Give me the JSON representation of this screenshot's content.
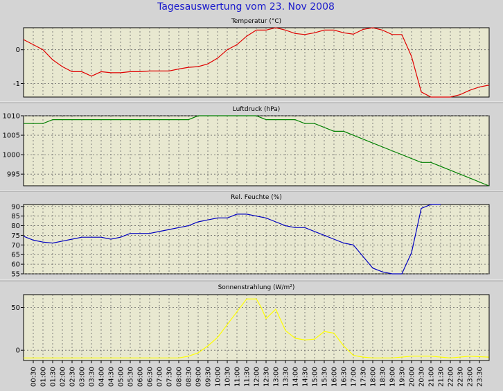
{
  "title": "Tagesauswertung vom 23. Nov 2008",
  "colors": {
    "background": "#d4d4d4",
    "plot_bg": "#e8e8d0",
    "grid": "#666666",
    "title": "#1a1acc"
  },
  "x_ticks": [
    "00:30",
    "01:00",
    "01:30",
    "02:00",
    "02:30",
    "03:00",
    "03:30",
    "04:00",
    "04:30",
    "05:00",
    "05:30",
    "06:00",
    "06:30",
    "07:00",
    "07:30",
    "08:00",
    "08:30",
    "09:00",
    "09:30",
    "10:00",
    "10:30",
    "11:00",
    "11:30",
    "12:00",
    "12:30",
    "13:00",
    "13:30",
    "14:00",
    "14:30",
    "15:00",
    "15:30",
    "16:00",
    "16:30",
    "17:00",
    "17:30",
    "18:00",
    "18:30",
    "19:00",
    "19:30",
    "20:00",
    "20:30",
    "21:00",
    "21:30",
    "22:00",
    "22:30",
    "23:00",
    "23:30"
  ],
  "chart_data": [
    {
      "type": "line",
      "title": "Temperatur (°C)",
      "color": "#e00000",
      "ylim": [
        -1.4,
        0.65
      ],
      "yticks": [
        0,
        -1
      ],
      "grid": true,
      "x": [
        "00:00",
        "00:30",
        "01:00",
        "01:30",
        "02:00",
        "02:30",
        "03:00",
        "03:30",
        "04:00",
        "04:30",
        "05:00",
        "05:30",
        "06:00",
        "06:30",
        "07:00",
        "07:30",
        "08:00",
        "08:30",
        "09:00",
        "09:30",
        "10:00",
        "10:30",
        "11:00",
        "11:30",
        "12:00",
        "12:30",
        "13:00",
        "13:30",
        "14:00",
        "14:30",
        "15:00",
        "15:30",
        "16:00",
        "16:30",
        "17:00",
        "17:30",
        "18:00",
        "18:30",
        "19:00",
        "19:30",
        "20:00",
        "20:30",
        "21:00",
        "21:30",
        "22:00",
        "22:30",
        "23:00",
        "23:30",
        "23:59"
      ],
      "values": [
        0.3,
        0.15,
        0.0,
        -0.3,
        -0.5,
        -0.65,
        -0.65,
        -0.78,
        -0.65,
        -0.68,
        -0.68,
        -0.65,
        -0.65,
        -0.63,
        -0.63,
        -0.63,
        -0.57,
        -0.52,
        -0.5,
        -0.42,
        -0.25,
        0.0,
        0.15,
        0.4,
        0.58,
        0.58,
        0.65,
        0.58,
        0.48,
        0.45,
        0.5,
        0.58,
        0.58,
        0.5,
        0.46,
        0.6,
        0.65,
        0.58,
        0.45,
        0.45,
        -0.2,
        -1.25,
        -1.4,
        -1.4,
        -1.4,
        -1.33,
        -1.2,
        -1.1,
        -1.05
      ]
    },
    {
      "type": "line",
      "title": "Luftdruck (hPa)",
      "color": "#008000",
      "ylim": [
        992,
        1010
      ],
      "yticks": [
        1010,
        1005,
        1000,
        995
      ],
      "grid": true,
      "x": [
        "00:00",
        "01:00",
        "01:30",
        "08:30",
        "09:00",
        "12:00",
        "12:30",
        "14:00",
        "14:30",
        "15:00",
        "16:00",
        "16:30",
        "17:00",
        "18:00",
        "19:00",
        "20:00",
        "20:30",
        "21:00",
        "22:00",
        "23:00",
        "23:59"
      ],
      "values": [
        1008,
        1008,
        1009,
        1009,
        1010,
        1010,
        1009,
        1009,
        1008,
        1008,
        1006,
        1006,
        1005,
        1003,
        1001,
        999,
        998,
        998,
        996,
        994,
        992
      ]
    },
    {
      "type": "line",
      "title": "Rel. Feuchte (%)",
      "color": "#0000c0",
      "ylim": [
        55,
        91
      ],
      "yticks": [
        90,
        85,
        80,
        75,
        70,
        65,
        60,
        55
      ],
      "grid": true,
      "x": [
        "00:00",
        "00:30",
        "01:00",
        "01:30",
        "02:00",
        "02:30",
        "03:00",
        "03:30",
        "04:00",
        "04:30",
        "05:00",
        "05:30",
        "06:00",
        "06:30",
        "07:00",
        "07:30",
        "08:00",
        "08:30",
        "09:00",
        "09:30",
        "10:00",
        "10:30",
        "11:00",
        "11:30",
        "12:00",
        "12:30",
        "13:00",
        "13:30",
        "14:00",
        "14:30",
        "15:00",
        "15:30",
        "16:00",
        "16:30",
        "17:00",
        "17:30",
        "18:00",
        "18:30",
        "19:00",
        "19:30",
        "20:00",
        "20:30",
        "21:00",
        "21:30"
      ],
      "values": [
        74.5,
        72.5,
        71.5,
        71,
        72,
        73,
        74,
        74,
        74,
        73,
        74,
        76,
        76,
        76,
        77,
        78,
        79,
        80,
        82,
        83,
        84,
        84,
        86,
        86,
        85,
        84,
        82,
        80,
        79,
        79,
        77,
        75,
        73,
        71,
        70,
        64,
        58,
        56,
        55,
        55,
        66,
        89,
        91,
        92
      ]
    },
    {
      "type": "line",
      "title": "Sonnenstrahlung (W/m²)",
      "color": "#ffff00",
      "ylim": [
        -12,
        65
      ],
      "yticks": [
        50,
        0
      ],
      "grid": true,
      "x": [
        "00:00",
        "01:00",
        "02:00",
        "03:00",
        "04:00",
        "05:00",
        "06:00",
        "07:00",
        "08:00",
        "08:30",
        "09:00",
        "09:30",
        "10:00",
        "10:30",
        "11:00",
        "11:30",
        "12:00",
        "12:15",
        "12:30",
        "13:00",
        "13:30",
        "14:00",
        "14:30",
        "15:00",
        "15:30",
        "16:00",
        "16:30",
        "17:00",
        "17:30",
        "18:00",
        "19:00",
        "20:00",
        "21:00",
        "22:00",
        "23:00",
        "23:59"
      ],
      "values": [
        -9,
        -9,
        -9,
        -9,
        -9,
        -9,
        -9,
        -9,
        -9,
        -7,
        -3,
        5,
        15,
        30,
        45,
        60,
        60,
        50,
        37,
        48,
        23,
        14,
        12,
        13,
        22,
        20,
        5,
        -6,
        -8,
        -9,
        -9,
        -7,
        -7,
        -9,
        -7,
        -8
      ]
    }
  ]
}
